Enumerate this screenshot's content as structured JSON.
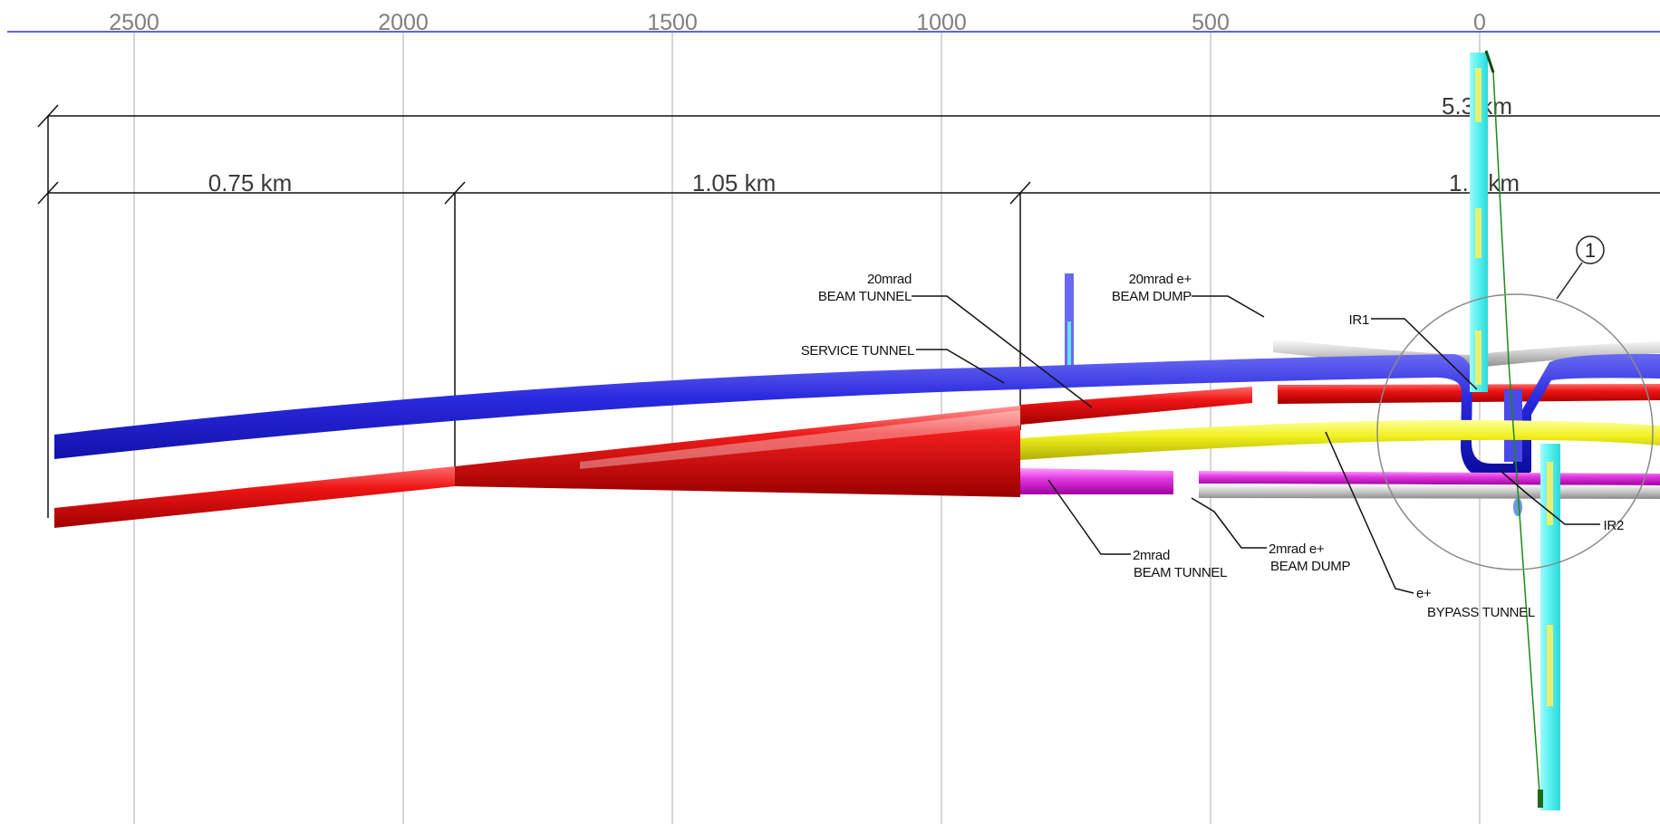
{
  "axis": {
    "ticks": [
      "2500",
      "2000",
      "1500",
      "1000",
      "500",
      "0"
    ]
  },
  "dimensions": {
    "total": "5.3 km",
    "seg1": "0.75 km",
    "seg2": "1.05 km",
    "seg3": "1.7 km"
  },
  "callouts": {
    "beam_tunnel_20mrad_l1": "20mrad",
    "beam_tunnel_20mrad_l2": "BEAM TUNNEL",
    "beam_dump_20mrad_l1": "20mrad e+",
    "beam_dump_20mrad_l2": "BEAM DUMP",
    "service_tunnel": "SERVICE TUNNEL",
    "ir1": "IR1",
    "ir2": "IR2",
    "beam_tunnel_2mrad_l1": "2mrad",
    "beam_tunnel_2mrad_l2": "BEAM TUNNEL",
    "beam_dump_2mrad_l1": "2mrad e+",
    "beam_dump_2mrad_l2": "BEAM DUMP",
    "bypass_l1": "e+",
    "bypass_l2": "BYPASS TUNNEL",
    "circle_number": "1"
  },
  "colors": {
    "service_tunnel": "#1f1fd6",
    "beam_tunnel": "#e01010",
    "bypass_tunnel": "#e8e81a",
    "beam_tunnel_2mrad": "#e23ae2",
    "beam_dump": "#c8c8c8",
    "vertical_shaft": "#55f0f0",
    "axis_line": "#2b2bdc",
    "grid": "#c8c8c8"
  }
}
